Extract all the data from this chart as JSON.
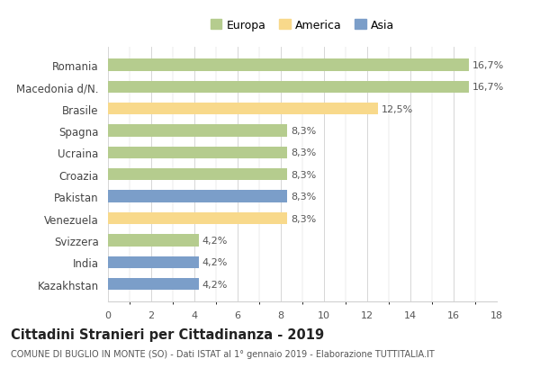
{
  "categories": [
    "Romania",
    "Macedonia d/N.",
    "Brasile",
    "Spagna",
    "Ucraina",
    "Croazia",
    "Pakistan",
    "Venezuela",
    "Svizzera",
    "India",
    "Kazakhstan"
  ],
  "values": [
    16.7,
    16.7,
    12.5,
    8.3,
    8.3,
    8.3,
    8.3,
    8.3,
    4.2,
    4.2,
    4.2
  ],
  "labels": [
    "16,7%",
    "16,7%",
    "12,5%",
    "8,3%",
    "8,3%",
    "8,3%",
    "8,3%",
    "8,3%",
    "4,2%",
    "4,2%",
    "4,2%"
  ],
  "continents": [
    "Europa",
    "Europa",
    "America",
    "Europa",
    "Europa",
    "Europa",
    "Asia",
    "America",
    "Europa",
    "Asia",
    "Asia"
  ],
  "colors": {
    "Europa": "#b5cc8e",
    "America": "#f8d98b",
    "Asia": "#7b9ec9"
  },
  "xlim": [
    0,
    18
  ],
  "xticks": [
    0,
    2,
    4,
    6,
    8,
    10,
    12,
    14,
    16,
    18
  ],
  "title": "Cittadini Stranieri per Cittadinanza - 2019",
  "subtitle": "COMUNE DI BUGLIO IN MONTE (SO) - Dati ISTAT al 1° gennaio 2019 - Elaborazione TUTTITALIA.IT",
  "background_color": "#ffffff",
  "grid_color": "#d0d0d0",
  "bar_height": 0.55,
  "label_fontsize": 8,
  "title_fontsize": 10.5,
  "subtitle_fontsize": 7,
  "tick_fontsize": 8,
  "ytick_fontsize": 8.5,
  "legend_fontsize": 9
}
